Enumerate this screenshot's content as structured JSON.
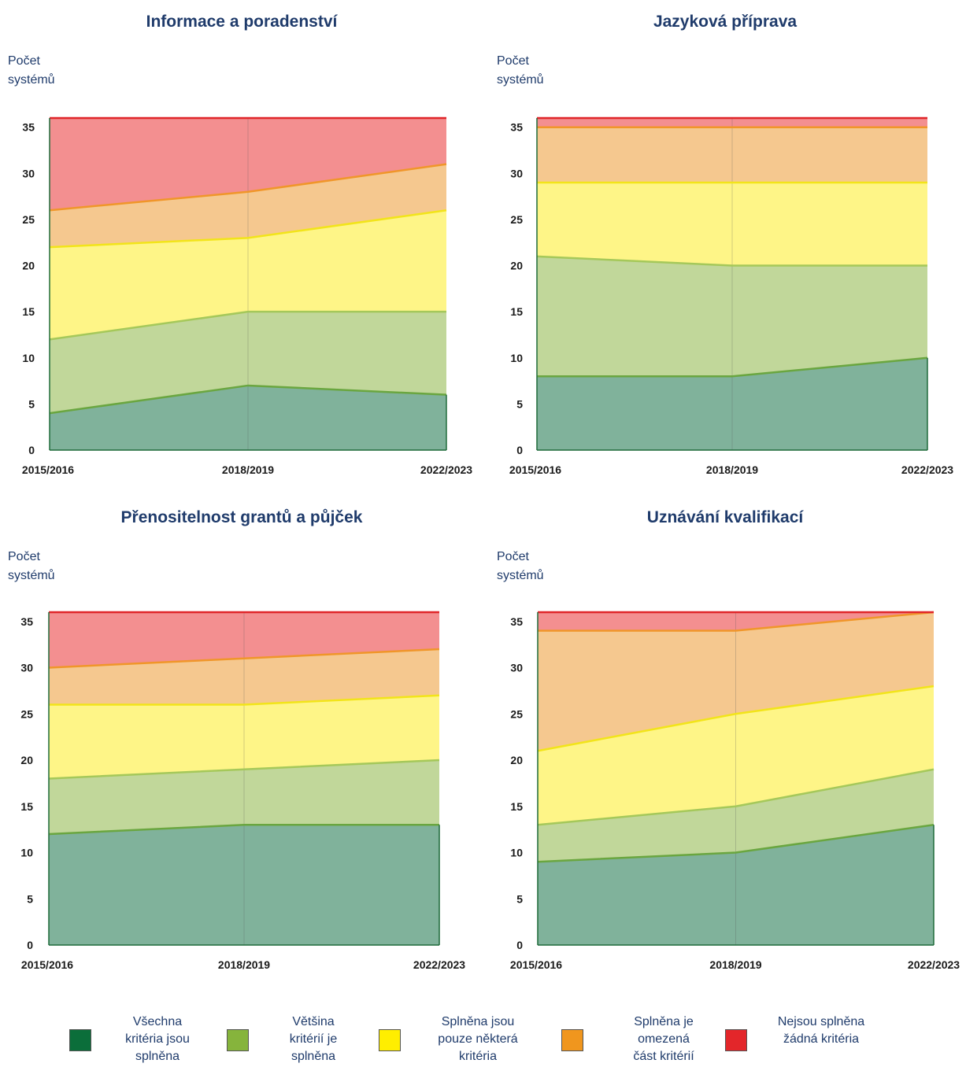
{
  "chart_data": [
    {
      "type": "area",
      "title": "Informace a poradenství",
      "ylabel": "Počet\nsystémů",
      "categories": [
        "2015/2016",
        "2018/2019",
        "2022/2023"
      ],
      "ylim": [
        0,
        36
      ],
      "yticks": [
        0,
        5,
        10,
        15,
        20,
        25,
        30,
        35
      ],
      "series": [
        {
          "values": [
            4,
            7,
            6
          ]
        },
        {
          "values": [
            8,
            8,
            9
          ]
        },
        {
          "values": [
            10,
            8,
            11
          ]
        },
        {
          "values": [
            4,
            5,
            5
          ]
        },
        {
          "values": [
            10,
            8,
            5
          ]
        }
      ]
    },
    {
      "type": "area",
      "title": "Jazyková příprava",
      "ylabel": "Počet\nsystémů",
      "categories": [
        "2015/2016",
        "2018/2019",
        "2022/2023"
      ],
      "ylim": [
        0,
        36
      ],
      "yticks": [
        0,
        5,
        10,
        15,
        20,
        25,
        30,
        35
      ],
      "series": [
        {
          "values": [
            8,
            8,
            10
          ]
        },
        {
          "values": [
            13,
            12,
            10
          ]
        },
        {
          "values": [
            8,
            9,
            9
          ]
        },
        {
          "values": [
            6,
            6,
            6
          ]
        },
        {
          "values": [
            1,
            1,
            1
          ]
        }
      ]
    },
    {
      "type": "area",
      "title": "Přenositelnost grantů a půjček",
      "ylabel": "Počet\nsystémů",
      "categories": [
        "2015/2016",
        "2018/2019",
        "2022/2023"
      ],
      "ylim": [
        0,
        36
      ],
      "yticks": [
        0,
        5,
        10,
        15,
        20,
        25,
        30,
        35
      ],
      "series": [
        {
          "values": [
            12,
            13,
            13
          ]
        },
        {
          "values": [
            6,
            6,
            7
          ]
        },
        {
          "values": [
            8,
            7,
            7
          ]
        },
        {
          "values": [
            4,
            5,
            5
          ]
        },
        {
          "values": [
            6,
            5,
            4
          ]
        }
      ]
    },
    {
      "type": "area",
      "title": "Uznávání kvalifikací",
      "ylabel": "Počet\nsystémů",
      "categories": [
        "2015/2016",
        "2018/2019",
        "2022/2023"
      ],
      "ylim": [
        0,
        36
      ],
      "yticks": [
        0,
        5,
        10,
        15,
        20,
        25,
        30,
        35
      ],
      "series": [
        {
          "values": [
            9,
            10,
            13
          ]
        },
        {
          "values": [
            4,
            5,
            6
          ]
        },
        {
          "values": [
            8,
            10,
            9
          ]
        },
        {
          "values": [
            13,
            9,
            8
          ]
        },
        {
          "values": [
            2,
            2,
            0
          ]
        }
      ]
    }
  ],
  "legend": [
    {
      "label": "Všechna\nkritéria jsou\nsplněna",
      "color": "#0b6e3a"
    },
    {
      "label": "Většina\nkritérií je\nsplněna",
      "color": "#86b43c"
    },
    {
      "label": "Splněna jsou\npouze některá\nkritéria",
      "color": "#ffee00"
    },
    {
      "label": "Splněna je\nomezená\nčást kritérií",
      "color": "#f0961e"
    },
    {
      "label": "Nejsou splněna\nžádná kritéria",
      "color": "#e3262a"
    }
  ],
  "colors": {
    "fills": [
      "#80b29b",
      "#c1d79a",
      "#fef587",
      "#f5c88f",
      "#f38f90"
    ],
    "lines": [
      "#6aa640",
      "#a5c85a",
      "#f2e41a",
      "#f0962a",
      "#e0262a"
    ],
    "text": "#1f3b6b"
  }
}
